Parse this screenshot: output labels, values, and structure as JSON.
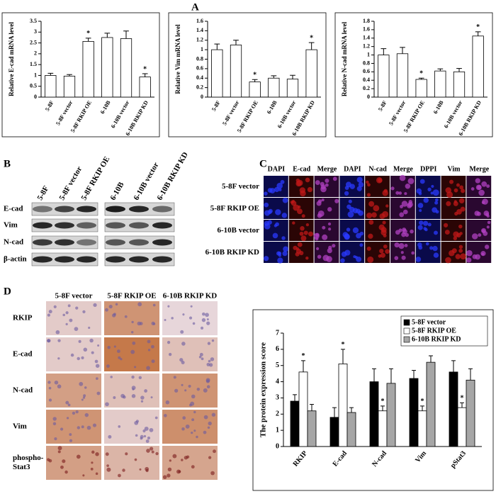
{
  "chart_data": [
    {
      "type": "bar",
      "y_label": "Relative E-cad mRNA level",
      "categories": [
        "5-8F",
        "5-8F vector",
        "5-8F RKIP OE",
        "6-10B",
        "6-10B vector",
        "6-10B RKIP KD"
      ],
      "values": [
        1.0,
        0.97,
        2.57,
        2.75,
        2.7,
        0.93
      ],
      "errors": [
        0.1,
        0.07,
        0.15,
        0.2,
        0.35,
        0.15
      ],
      "annotations": [
        null,
        null,
        "*",
        null,
        null,
        "*"
      ],
      "color": "#ffffff",
      "ylim": [
        0,
        3.5
      ],
      "yticks": [
        0,
        0.5,
        1,
        1.5,
        2,
        2.5,
        3,
        3.5
      ]
    },
    {
      "type": "bar",
      "y_label": "Relative Vim mRNA level",
      "categories": [
        "5-8F",
        "5-8F vector",
        "5-8F RKIP OE",
        "6-10B",
        "6-10B vector",
        "6-10B RKIP KD"
      ],
      "values": [
        1.0,
        1.1,
        0.32,
        0.4,
        0.38,
        1.0
      ],
      "errors": [
        0.12,
        0.1,
        0.05,
        0.05,
        0.08,
        0.15
      ],
      "annotations": [
        null,
        null,
        "*",
        null,
        null,
        "*"
      ],
      "color": "#ffffff",
      "ylim": [
        0,
        1.6
      ],
      "yticks": [
        0,
        0.2,
        0.4,
        0.6,
        0.8,
        1,
        1.2,
        1.4,
        1.6
      ]
    },
    {
      "type": "bar",
      "y_label": "Relative N-cad mRNA level",
      "categories": [
        "5-8F",
        "5-8F vector",
        "5-8F RKIP OE",
        "6-10B",
        "6-10B vector",
        "6-10B RKIP KD"
      ],
      "values": [
        1.0,
        1.03,
        0.42,
        0.62,
        0.6,
        1.45
      ],
      "errors": [
        0.15,
        0.15,
        0.03,
        0.05,
        0.08,
        0.1
      ],
      "annotations": [
        null,
        null,
        "*",
        null,
        null,
        "*"
      ],
      "color": "#ffffff",
      "ylim": [
        0,
        1.8
      ],
      "yticks": [
        0,
        0.2,
        0.4,
        0.6,
        0.8,
        1,
        1.2,
        1.4,
        1.6,
        1.8
      ]
    },
    {
      "type": "grouped_bar",
      "y_label": "The protein expression score",
      "categories": [
        "RKIP",
        "E-cad",
        "N-cad",
        "Vim",
        "pStat3"
      ],
      "series": [
        {
          "name": "5-8F vector",
          "color": "#000000",
          "values": [
            2.8,
            1.8,
            4.0,
            4.2,
            4.6
          ],
          "errors": [
            0.4,
            0.6,
            0.8,
            0.5,
            0.7
          ]
        },
        {
          "name": "5-8F RKIP OE",
          "color": "#ffffff",
          "values": [
            4.6,
            5.1,
            2.2,
            2.2,
            2.4
          ],
          "errors": [
            0.7,
            0.9,
            0.3,
            0.3,
            0.3
          ],
          "annotations": [
            "*",
            "*",
            "*",
            "*",
            "*"
          ]
        },
        {
          "name": "6-10B RKIP KD",
          "color": "#a6a6a6",
          "values": [
            2.2,
            2.1,
            3.9,
            5.2,
            4.1
          ],
          "errors": [
            0.4,
            0.3,
            0.9,
            0.4,
            0.7
          ]
        }
      ],
      "ylim": [
        0,
        7
      ],
      "yticks": [
        0,
        1,
        2,
        3,
        4,
        5,
        6,
        7
      ],
      "legend": "top-right"
    }
  ],
  "panel_labels": [
    "A",
    "B",
    "C",
    "D"
  ],
  "blots": {
    "lanes": [
      "5-8F",
      "5-8F vector",
      "5-8F RKIP OE",
      "6-10B",
      "6-10B vector",
      "6-10B RKIP KD"
    ],
    "rows": [
      "E-cad",
      "Vim",
      "N-cad",
      "β-actin"
    ]
  },
  "immunofluorescence": {
    "headers": [
      "DAPI",
      "E-cad",
      "Merge",
      "DAPI",
      "N-cad",
      "Merge",
      "DPPI",
      "Vim",
      "Merge"
    ],
    "rows": [
      "5-8F vector",
      "5-8F RKIP OE",
      "6-10B vector",
      "6-10B RKIP KD"
    ]
  },
  "ihc": {
    "columns": [
      "5-8F vector",
      "5-8F RKIP OE",
      "6-10B RKIP KD"
    ],
    "rows": [
      [
        "RKIP"
      ],
      [
        "E-cad"
      ],
      [
        "N-cad"
      ],
      [
        "Vim"
      ],
      [
        "phospho-",
        "Stat3"
      ]
    ]
  }
}
